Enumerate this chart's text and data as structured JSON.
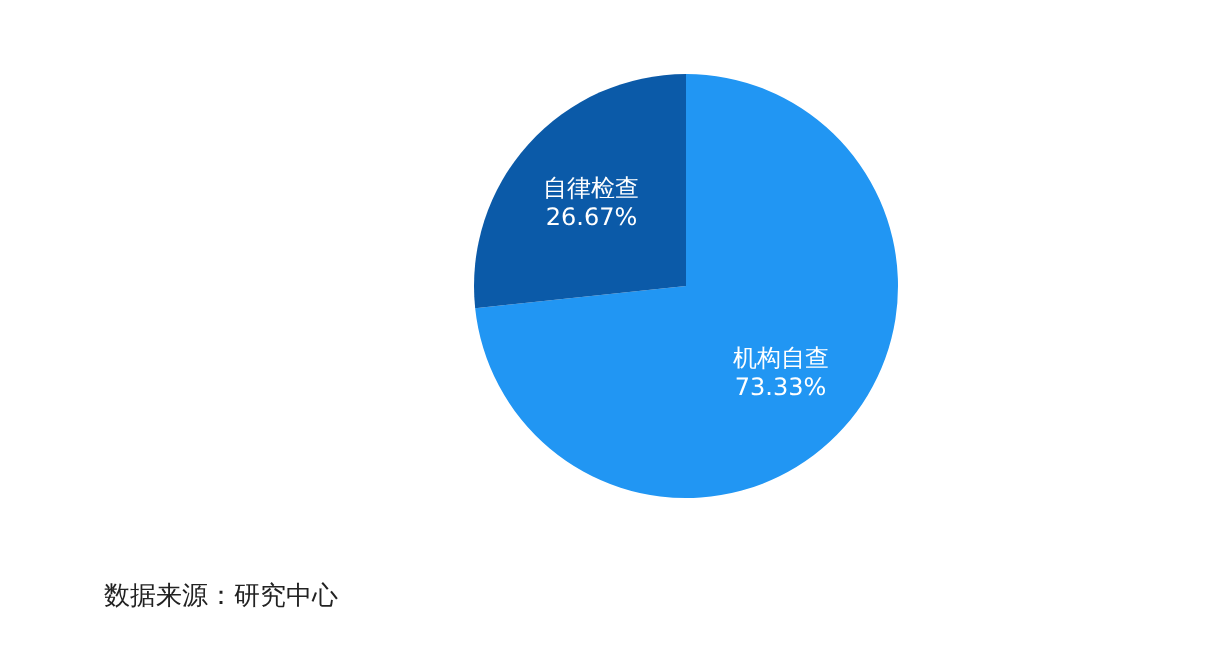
{
  "chart_data": {
    "type": "pie",
    "categories": [
      "机构自查",
      "自律检查"
    ],
    "values": [
      73.33,
      26.67
    ],
    "colors": [
      "#2196f3",
      "#0b5aa8"
    ],
    "value_labels": [
      "73.33%",
      "26.67%"
    ],
    "annotations": [
      "数据来源：研究中心"
    ]
  }
}
